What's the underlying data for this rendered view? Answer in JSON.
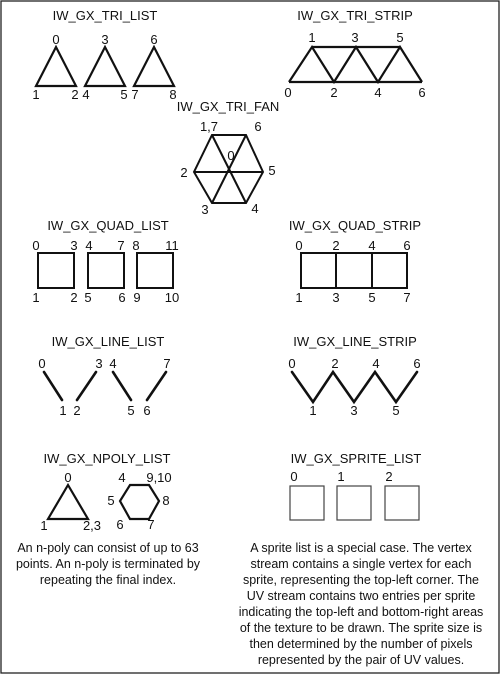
{
  "titles": {
    "tri_list": "IW_GX_TRI_LIST",
    "tri_strip": "IW_GX_TRI_STRIP",
    "tri_fan": "IW_GX_TRI_FAN",
    "quad_list": "IW_GX_QUAD_LIST",
    "quad_strip": "IW_GX_QUAD_STRIP",
    "line_list": "IW_GX_LINE_LIST",
    "line_strip": "IW_GX_LINE_STRIP",
    "npoly_list": "IW_GX_NPOLY_LIST",
    "sprite_list": "IW_GX_SPRITE_LIST"
  },
  "labels": {
    "tri_list": [
      "0",
      "1",
      "2",
      "3",
      "4",
      "5",
      "6",
      "7",
      "8"
    ],
    "tri_strip": [
      "1",
      "3",
      "5",
      "0",
      "2",
      "4",
      "6"
    ],
    "tri_fan": [
      "1,7",
      "6",
      "0",
      "2",
      "5",
      "3",
      "4"
    ],
    "quad_list": [
      "0",
      "3",
      "4",
      "7",
      "8",
      "11",
      "1",
      "2",
      "5",
      "6",
      "9",
      "10"
    ],
    "quad_strip": [
      "0",
      "2",
      "4",
      "6",
      "1",
      "3",
      "5",
      "7"
    ],
    "line_list": [
      "0",
      "3",
      "4",
      "7",
      "1",
      "2",
      "5",
      "6"
    ],
    "line_strip": [
      "0",
      "2",
      "4",
      "6",
      "1",
      "3",
      "5"
    ],
    "npoly_tri": [
      "0",
      "1",
      "2,3"
    ],
    "npoly_hex": [
      "4",
      "9,10",
      "5",
      "8",
      "6",
      "7"
    ],
    "sprite_list": [
      "0",
      "1",
      "2"
    ]
  },
  "captions": {
    "npoly": "An n-poly can consist of up to 63 points. An n-poly is terminated by repeating the final index.",
    "sprite": "A sprite list is a special case. The vertex stream contains a single vertex for each sprite, representing the top-left corner. The UV stream contains two entries per sprite indicating the top-left and bottom-right areas of the texture to be drawn. The sprite size is then determined by  the number of pixels represented by the pair of UV values."
  }
}
